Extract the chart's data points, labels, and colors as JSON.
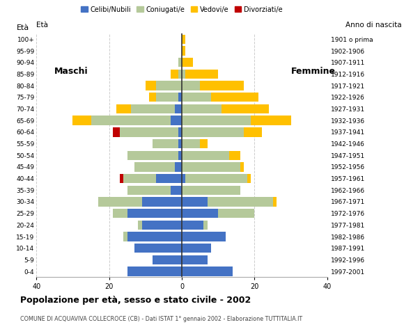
{
  "age_groups": [
    "0-4",
    "5-9",
    "10-14",
    "15-19",
    "20-24",
    "25-29",
    "30-34",
    "35-39",
    "40-44",
    "45-49",
    "50-54",
    "55-59",
    "60-64",
    "65-69",
    "70-74",
    "75-79",
    "80-84",
    "85-89",
    "90-94",
    "95-99",
    "100+"
  ],
  "birth_years": [
    "1997-2001",
    "1992-1996",
    "1987-1991",
    "1982-1986",
    "1977-1981",
    "1972-1976",
    "1967-1971",
    "1962-1966",
    "1957-1961",
    "1952-1956",
    "1947-1951",
    "1942-1946",
    "1937-1941",
    "1932-1936",
    "1927-1931",
    "1922-1926",
    "1917-1921",
    "1912-1916",
    "1907-1911",
    "1902-1906",
    "1901 o prima"
  ],
  "males": {
    "celibe": [
      15,
      8,
      13,
      15,
      11,
      15,
      11,
      3,
      7,
      2,
      1,
      1,
      1,
      3,
      2,
      1,
      0,
      0,
      0,
      0,
      0
    ],
    "coniugato": [
      0,
      0,
      0,
      1,
      1,
      4,
      12,
      12,
      9,
      11,
      14,
      7,
      16,
      22,
      12,
      6,
      7,
      1,
      1,
      0,
      0
    ],
    "vedovo": [
      0,
      0,
      0,
      0,
      0,
      0,
      0,
      0,
      0,
      0,
      0,
      0,
      0,
      5,
      4,
      2,
      3,
      2,
      0,
      0,
      0
    ],
    "divorziato": [
      0,
      0,
      0,
      0,
      0,
      0,
      0,
      0,
      1,
      0,
      0,
      0,
      2,
      0,
      0,
      0,
      0,
      0,
      0,
      0,
      0
    ]
  },
  "females": {
    "nubile": [
      14,
      7,
      8,
      12,
      6,
      10,
      7,
      0,
      1,
      0,
      0,
      0,
      0,
      0,
      0,
      0,
      0,
      0,
      0,
      0,
      0
    ],
    "coniugata": [
      0,
      0,
      0,
      0,
      1,
      10,
      18,
      16,
      17,
      16,
      13,
      5,
      17,
      19,
      11,
      8,
      5,
      1,
      0,
      0,
      0
    ],
    "vedova": [
      0,
      0,
      0,
      0,
      0,
      0,
      1,
      0,
      1,
      1,
      3,
      2,
      5,
      11,
      13,
      13,
      12,
      9,
      3,
      1,
      1
    ],
    "divorziata": [
      0,
      0,
      0,
      0,
      0,
      0,
      0,
      0,
      0,
      0,
      0,
      0,
      0,
      0,
      0,
      0,
      0,
      0,
      0,
      0,
      0
    ]
  },
  "colors": {
    "celibe_nubile": "#4472c4",
    "coniugato_a": "#b5c99a",
    "vedovo_a": "#ffc000",
    "divorziato_a": "#c00000"
  },
  "title": "Popolazione per età, sesso e stato civile - 2002",
  "subtitle": "COMUNE DI ACQUAVIVA COLLECROCE (CB) - Dati ISTAT 1° gennaio 2002 - Elaborazione TUTTITALIA.IT",
  "label_maschi": "Maschi",
  "label_femmine": "Femmine",
  "label_eta": "Età",
  "label_anno": "Anno di nascita",
  "xlim": 40,
  "legend_labels": [
    "Celibi/Nubili",
    "Coniugati/e",
    "Vedovi/e",
    "Divorziati/e"
  ],
  "bg_color": "#ffffff",
  "grid_color": "#cccccc",
  "bar_height": 0.8
}
